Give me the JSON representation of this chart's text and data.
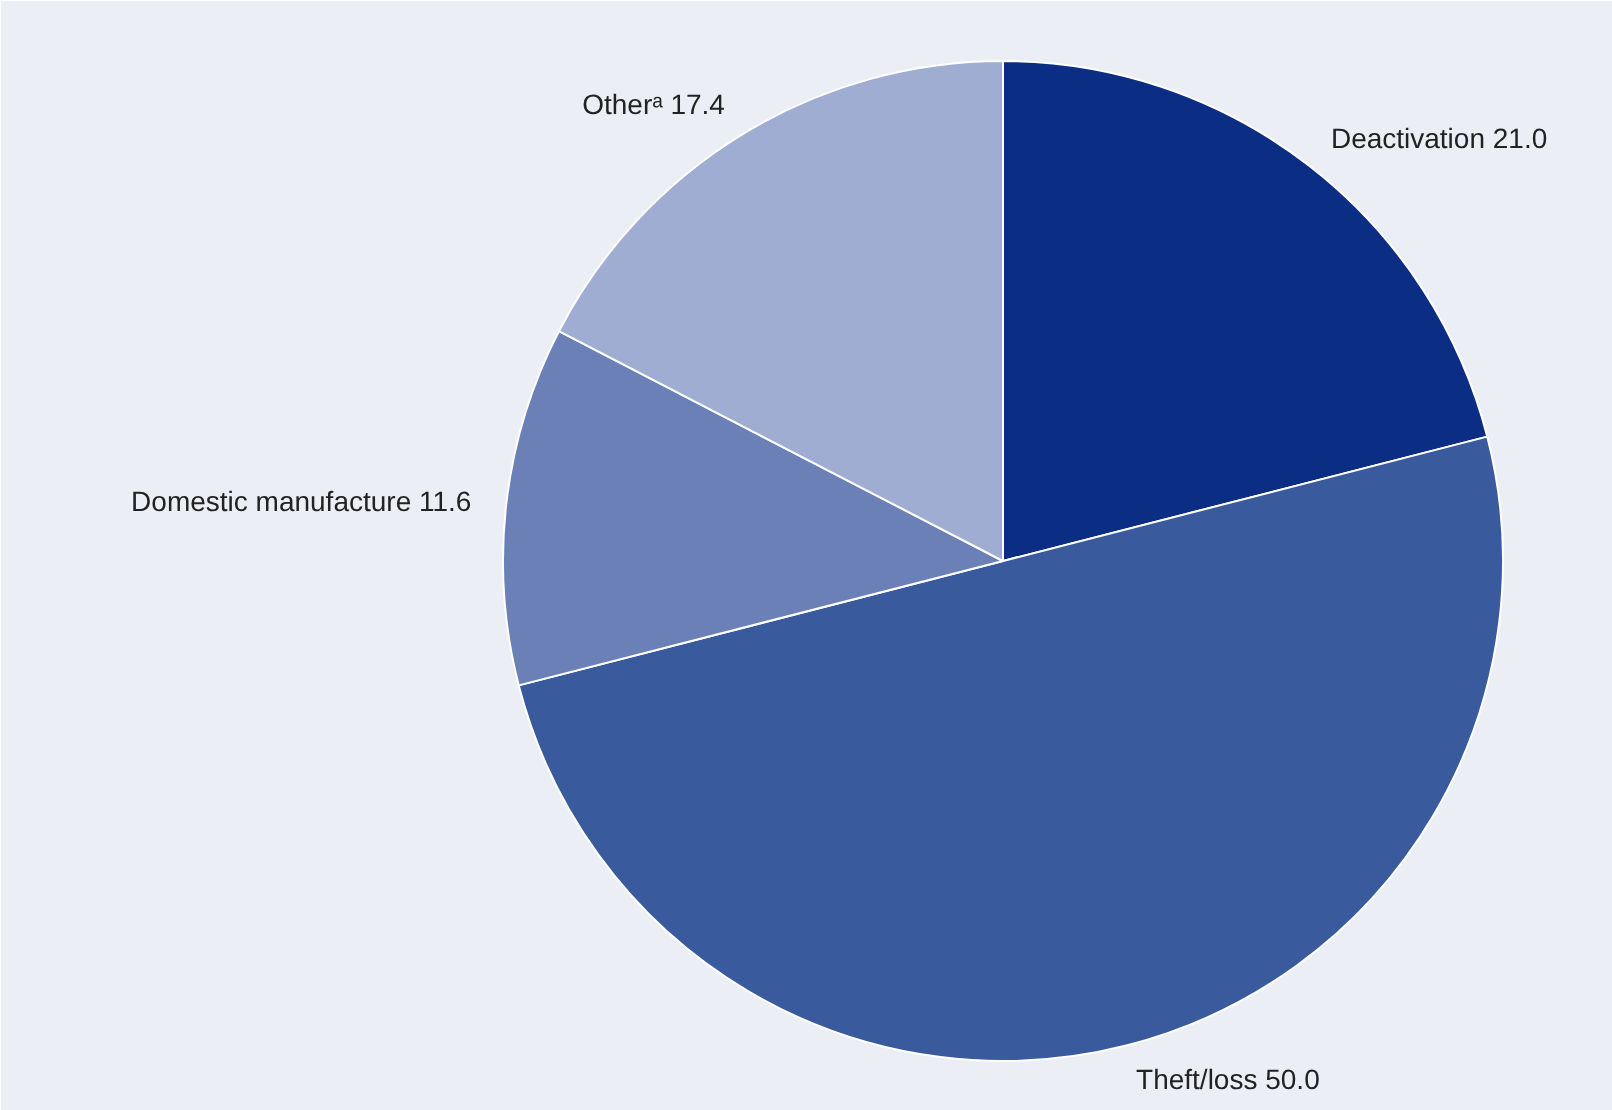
{
  "chart_data": {
    "type": "pie",
    "categories": [
      "Deactivation",
      "Theft/loss",
      "Domestic manufacture",
      "Otherᵃ"
    ],
    "values": [
      21.0,
      50.0,
      11.6,
      17.4
    ],
    "colors": [
      "#0b2d84",
      "#3a5a9e",
      "#6b80b6",
      "#9eadd1"
    ],
    "value_labels": [
      "21.0",
      "50.0",
      "11.6",
      "17.4"
    ]
  }
}
